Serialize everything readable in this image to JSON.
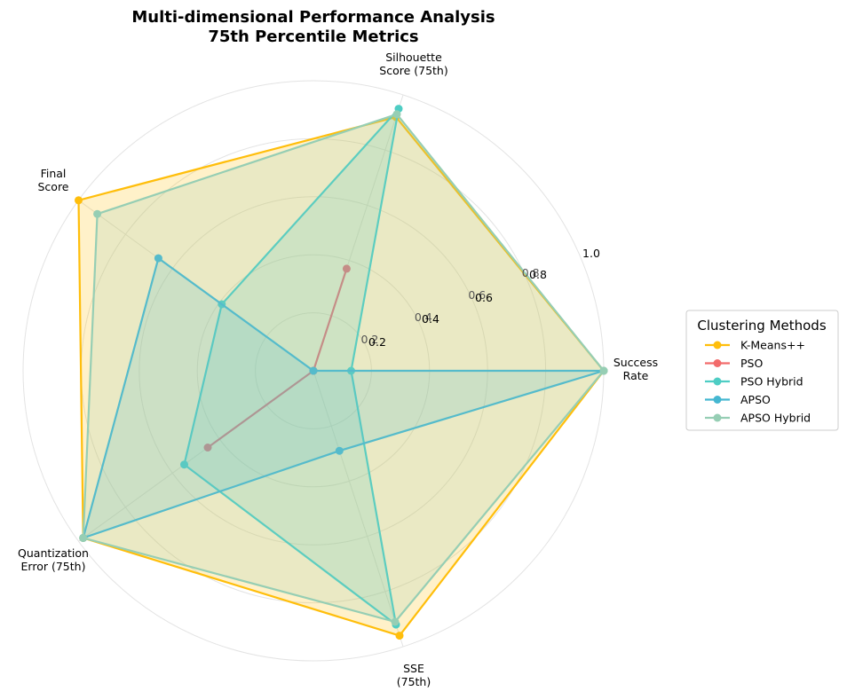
{
  "chart_data": {
    "type": "radar",
    "title_line1": "Multi-dimensional Performance Analysis",
    "title_line2": "75th Percentile Metrics",
    "axes": [
      {
        "label_lines": [
          "Success",
          "Rate"
        ]
      },
      {
        "label_lines": [
          "Silhouette",
          "Score (75th)"
        ]
      },
      {
        "label_lines": [
          "Final",
          "Score"
        ]
      },
      {
        "label_lines": [
          "Quantization",
          "Error (75th)"
        ]
      },
      {
        "label_lines": [
          "SSE",
          "(75th)"
        ]
      }
    ],
    "rlim": [
      0,
      1
    ],
    "radial_ticks": [
      0.2,
      0.4,
      0.6,
      0.8
    ],
    "secondary_ticks": [
      "0.2",
      "0.4",
      "0.6",
      "0.8",
      "1.0"
    ],
    "grid": true,
    "legend": {
      "title": "Clustering Methods",
      "placement": "right"
    },
    "series": [
      {
        "name": "K-Means++",
        "color": "#FFBE0B",
        "values": [
          1.0,
          0.92,
          1.0,
          0.98,
          0.96
        ],
        "fill_opacity": 0.22
      },
      {
        "name": "PSO",
        "color": "#F26B6B",
        "values": [
          0.0,
          0.37,
          0.0,
          0.45,
          0.0
        ],
        "fill_opacity": 0.0
      },
      {
        "name": "PSO Hybrid",
        "color": "#4ECDC4",
        "values": [
          0.13,
          0.95,
          0.39,
          0.55,
          0.92
        ],
        "fill_opacity": 0.2
      },
      {
        "name": "APSO",
        "color": "#45B7D1",
        "values": [
          1.0,
          0.0,
          0.66,
          0.98,
          0.29
        ],
        "fill_opacity": 0.2
      },
      {
        "name": "APSO Hybrid",
        "color": "#96CEB4",
        "values": [
          1.0,
          0.93,
          0.92,
          0.98,
          0.91
        ],
        "fill_opacity": 0.2
      }
    ]
  }
}
